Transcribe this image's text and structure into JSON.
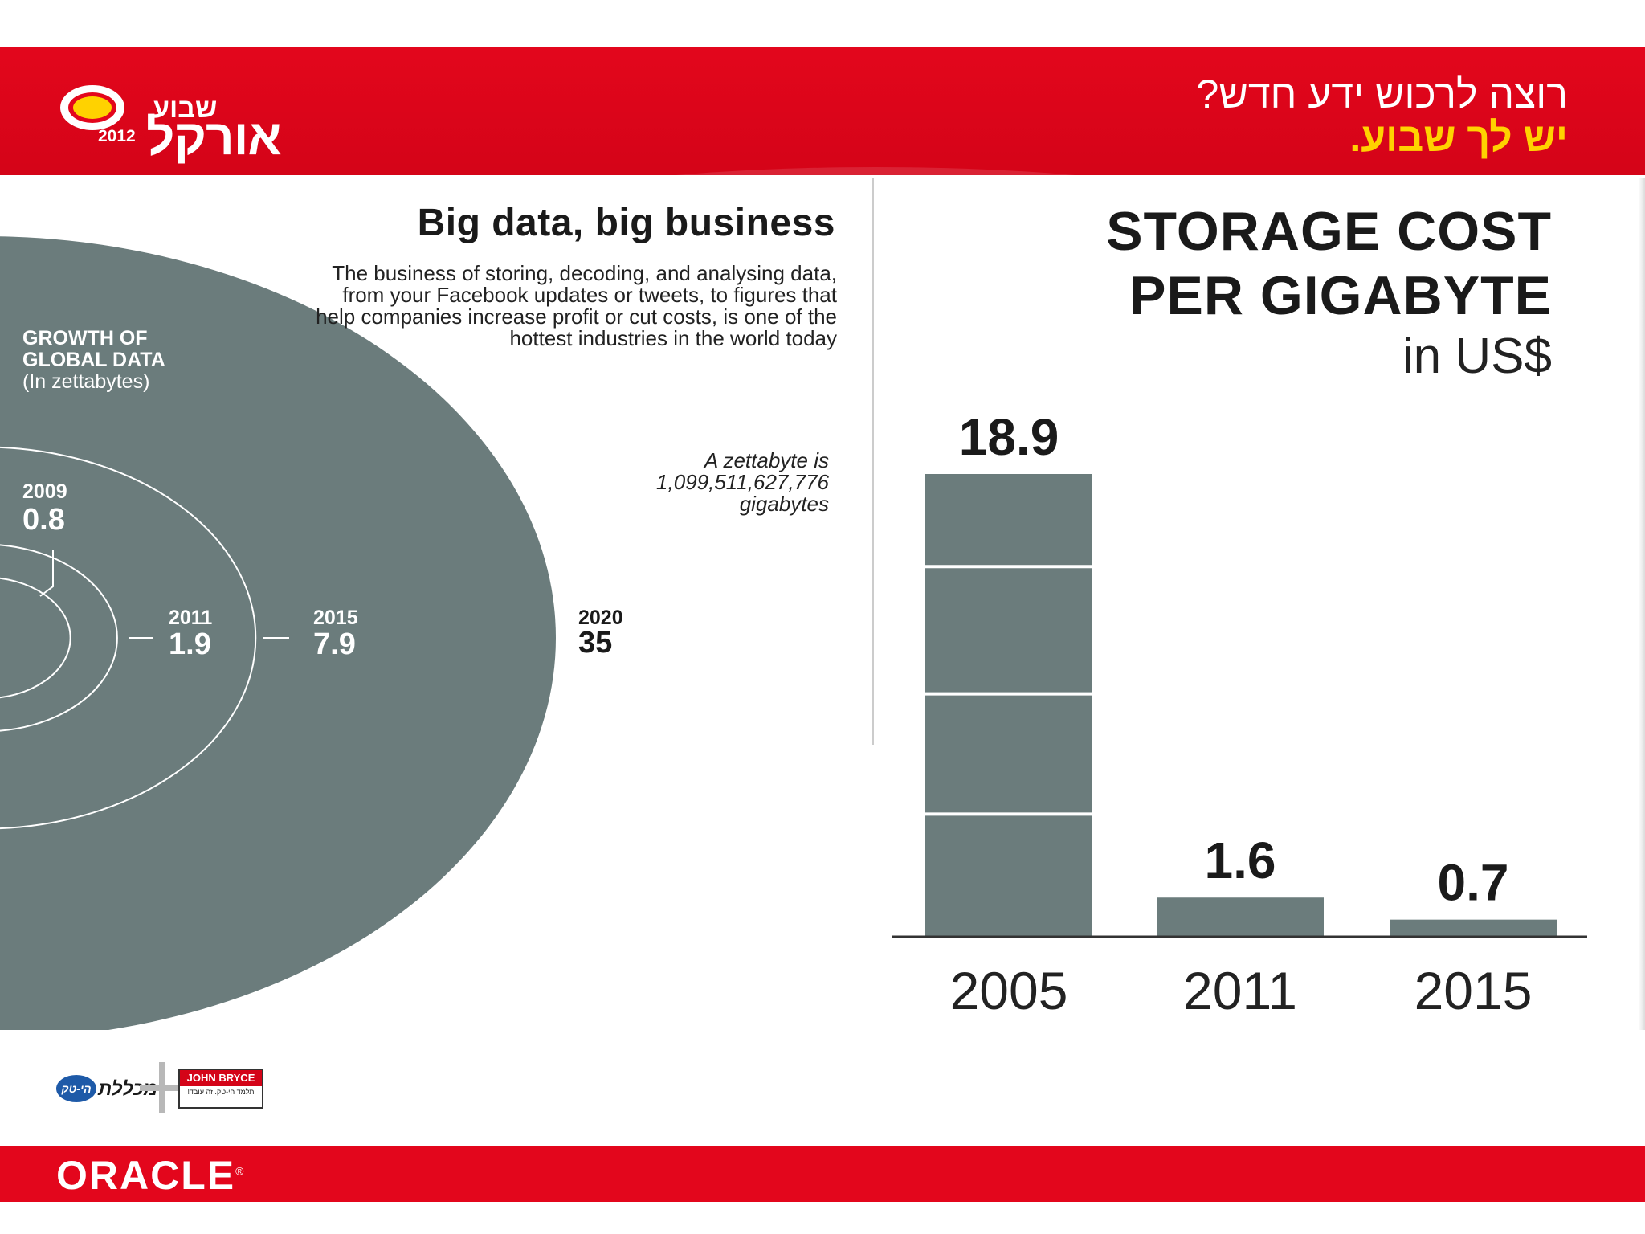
{
  "header": {
    "logo_small": "שבוע",
    "logo_big": "אורקל",
    "logo_year": "2012",
    "tagline_line1": "רוצה לרכוש ידע חדש?",
    "tagline_line2": "יש לך שבוע."
  },
  "left_panel": {
    "headline": "Big data, big business",
    "intro": "The business of storing, decoding, and analysing data, from your Facebook updates or tweets, to figures that help companies increase profit or cut costs, is one of the hottest industries in the world today",
    "zettabyte_note_line1": "A zettabyte is",
    "zettabyte_note_line2": "1,099,511,627,776",
    "zettabyte_note_line3": "gigabytes"
  },
  "chart_data": [
    {
      "type": "bubble",
      "title_line1": "GROWTH OF",
      "title_line2": "GLOBAL DATA",
      "subtitle": "(In zettabytes)",
      "unit": "zettabytes",
      "points": [
        {
          "year": "2009",
          "value": 0.8,
          "label": "0.8"
        },
        {
          "year": "2011",
          "value": 1.9,
          "label": "1.9"
        },
        {
          "year": "2015",
          "value": 7.9,
          "label": "7.9"
        },
        {
          "year": "2020",
          "value": 35,
          "label": "35"
        }
      ]
    },
    {
      "type": "bar",
      "title_line1": "STORAGE COST",
      "title_line2": "PER GIGABYTE",
      "unit": "in US$",
      "categories": [
        "2005",
        "2011",
        "2015"
      ],
      "values": [
        18.9,
        1.6,
        0.7
      ],
      "value_labels": [
        "18.9",
        "1.6",
        "0.7"
      ],
      "ylim": [
        0,
        18.9
      ],
      "gridlines": "white separators within the tallest bar",
      "color": "#6b7c7c"
    }
  ],
  "footer": {
    "partner_hitech": "הי-טק",
    "partner_college": "מכללת",
    "partner_jb": "JOHN BRYCE",
    "partner_jb_tag": "תלמד הי-טק. זה עובד!",
    "brand": "ORACLE",
    "brand_mark": "®"
  },
  "colors": {
    "red": "#e3061c",
    "yellow": "#ffd200",
    "slate": "#6b7c7c"
  }
}
